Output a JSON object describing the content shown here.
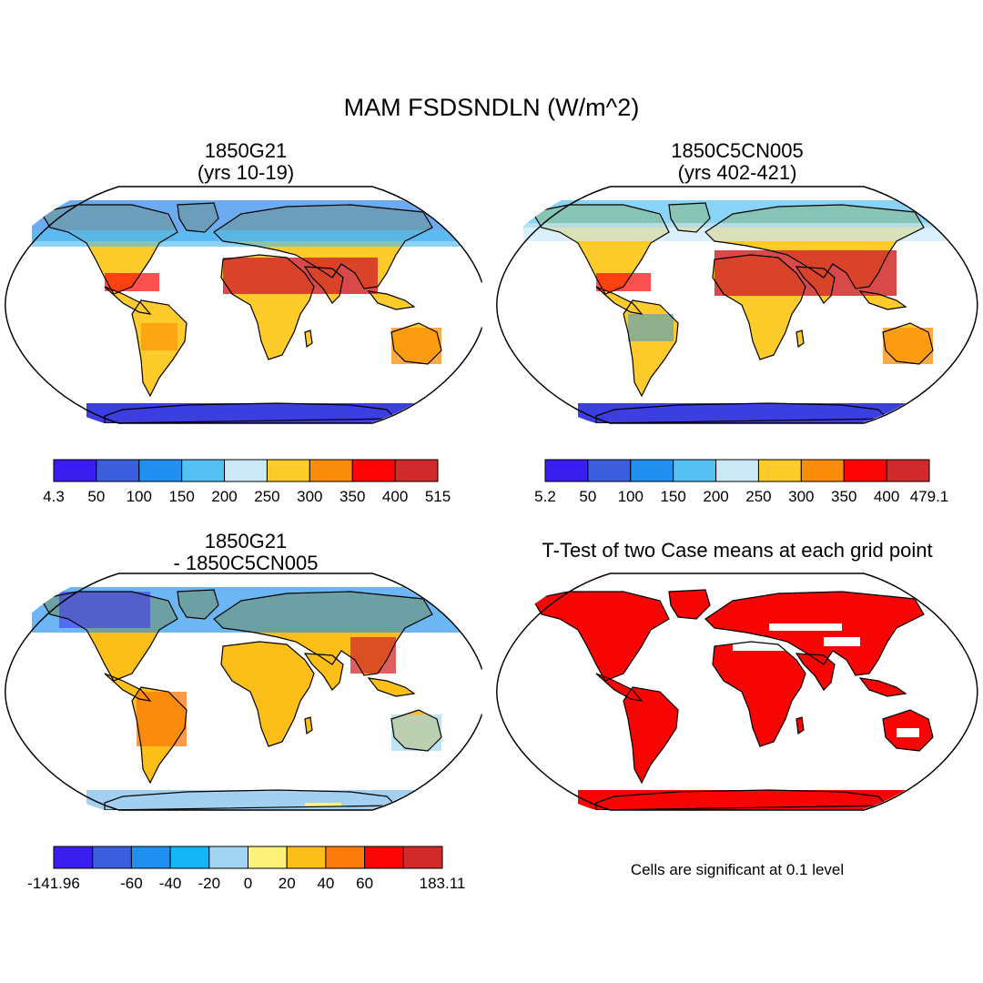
{
  "title": "MAM FSDSNDLN (W/m^2)",
  "panels": {
    "p1": {
      "title1": "1850G21",
      "title2": "(yrs 10-19)"
    },
    "p2": {
      "title1": "1850C5CN005",
      "title2": "(yrs 402-421)"
    },
    "p3": {
      "title1": "1850G21",
      "title2": "- 1850C5CN005"
    },
    "p4": {
      "title": "T-Test of two Case means at each grid point",
      "footnote": "Cells are significant at 0.1 level"
    }
  },
  "colorbars": {
    "cb1": {
      "colors": [
        "#3a1ef0",
        "#3b5ede",
        "#1f8ff0",
        "#55c1f2",
        "#cbe8f7",
        "#fdcc2a",
        "#fb8c0a",
        "#fc0505",
        "#d12a2a"
      ],
      "labels": [
        "4.3",
        "50",
        "100",
        "150",
        "200",
        "250",
        "300",
        "350",
        "400",
        "515"
      ]
    },
    "cb2": {
      "colors": [
        "#3a1ef0",
        "#3b5ede",
        "#1f8ff0",
        "#55c1f2",
        "#cbe8f7",
        "#fdcc2a",
        "#fb8c0a",
        "#fc0505",
        "#d12a2a"
      ],
      "labels": [
        "5.2",
        "50",
        "100",
        "150",
        "200",
        "250",
        "300",
        "350",
        "400",
        "479.1"
      ]
    },
    "cb3": {
      "colors": [
        "#3a1ef0",
        "#3b5ede",
        "#1f8ff0",
        "#15b6f5",
        "#a3d6f2",
        "#fdf27a",
        "#fbbf18",
        "#fb7a0a",
        "#fc0505",
        "#d12a2a"
      ],
      "labels": [
        "-141.96",
        "",
        "-60",
        "-40",
        "-20",
        "0",
        "20",
        "40",
        "60",
        "",
        "183.11"
      ]
    }
  },
  "colors": {
    "ocean": "#ffffff",
    "significant": "#f70505",
    "antarctica1": "#3b3ee0",
    "antarctica3": "#a3d0f0"
  }
}
